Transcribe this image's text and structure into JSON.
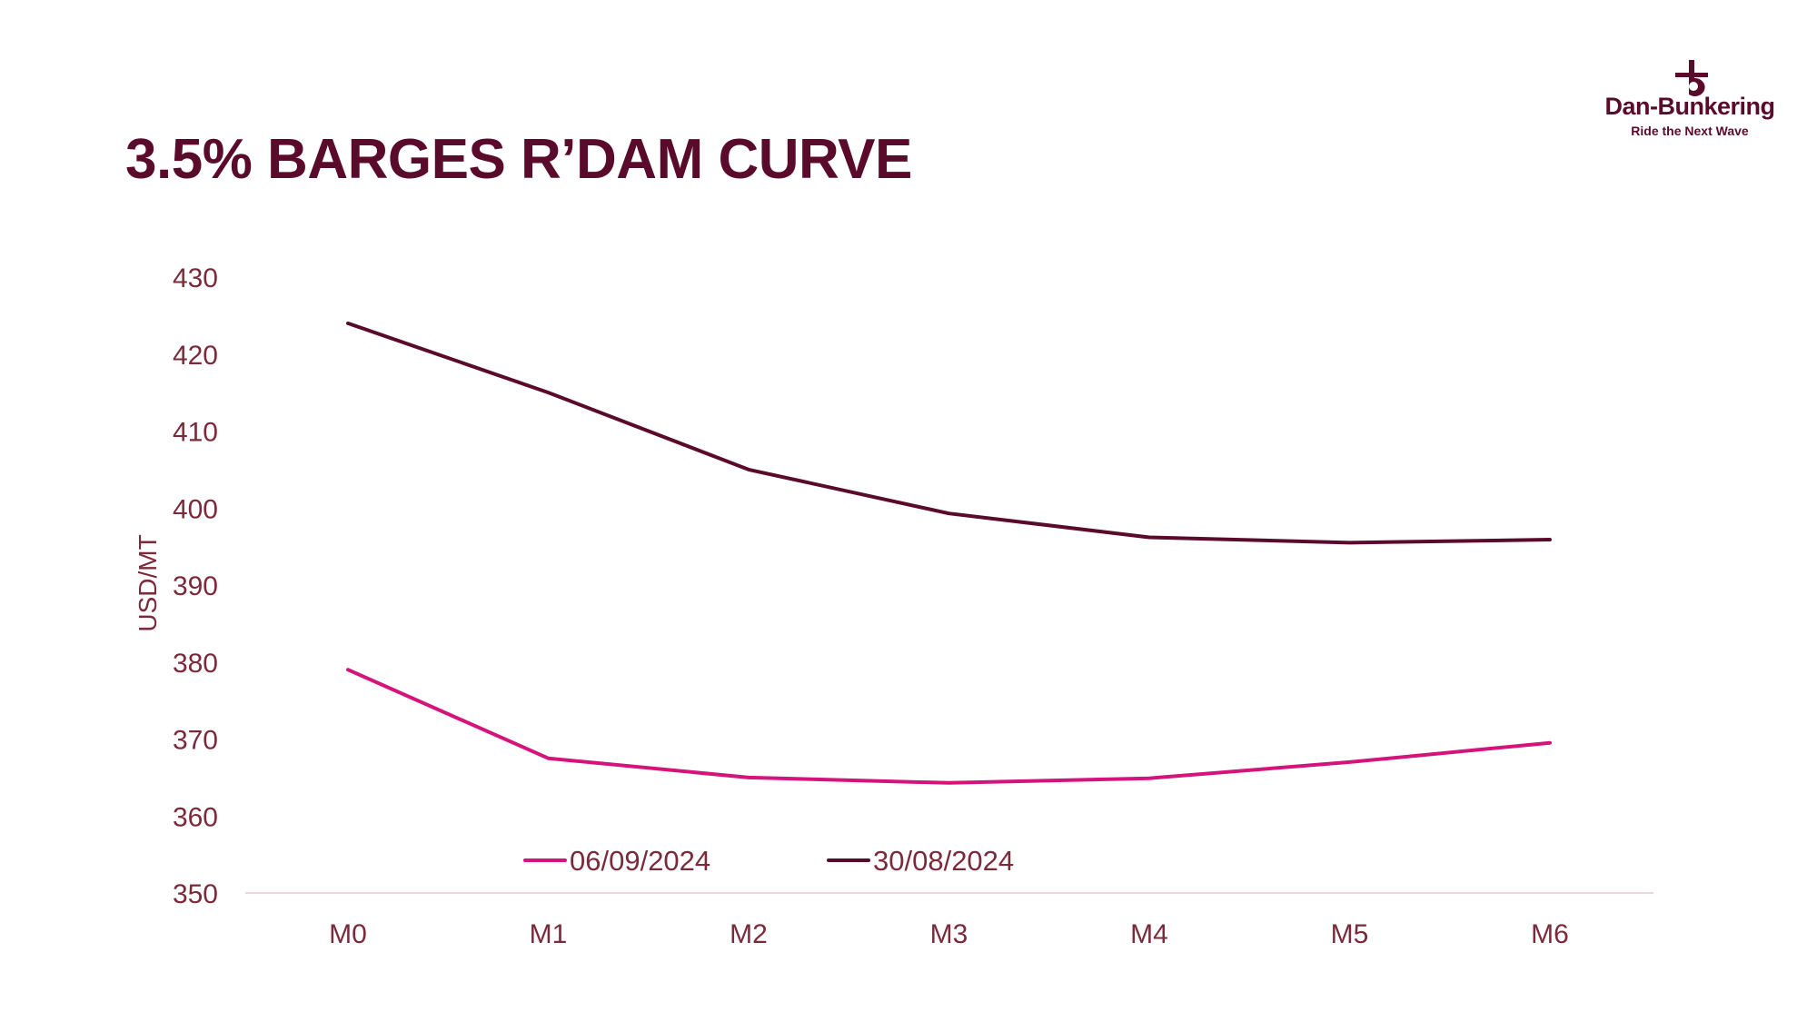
{
  "header": {
    "title": "3.5% BARGES R’DAM CURVE"
  },
  "logo": {
    "icon": "anchor-b-icon",
    "name": "Dan-Bunkering",
    "tagline": "Ride the Next Wave",
    "color": "#5a0a2a"
  },
  "chart_data": {
    "type": "line",
    "title": "3.5% BARGES R’DAM CURVE",
    "xlabel": "",
    "ylabel": "USD/MT",
    "categories": [
      "M0",
      "M1",
      "M2",
      "M3",
      "M4",
      "M5",
      "M6"
    ],
    "ylim": [
      350,
      430
    ],
    "yticks": [
      350,
      360,
      370,
      380,
      390,
      400,
      410,
      420,
      430
    ],
    "grid": false,
    "legend_position": "bottom-inside",
    "series": [
      {
        "name": "06/09/2024",
        "color": "#d4147a",
        "values": [
          379,
          367.5,
          365,
          364.3,
          364.9,
          367,
          369.5
        ]
      },
      {
        "name": "30/08/2024",
        "color": "#5a0a2a",
        "values": [
          424,
          415,
          405,
          399.3,
          396.2,
          395.5,
          395.9
        ]
      }
    ]
  }
}
